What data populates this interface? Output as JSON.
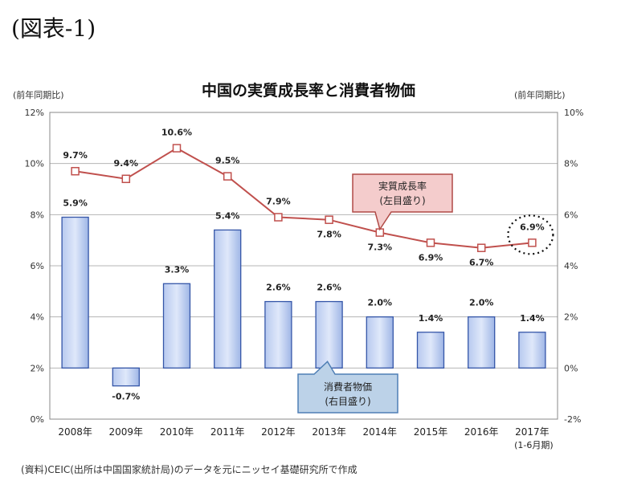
{
  "figure_label": "(図表-1)",
  "source_note": "(資料)CEIC(出所は中国国家統計局)のデータを元にニッセイ基礎研究所で作成",
  "chart_data": {
    "type": "bar+line",
    "title": "中国の実質成長率と消費者物価",
    "left_axis": {
      "unit_label": "(前年同期比)",
      "ylim": [
        0,
        12
      ],
      "ticks": [
        0,
        2,
        4,
        6,
        8,
        10,
        12
      ],
      "tick_labels": [
        "0%",
        "2%",
        "4%",
        "6%",
        "8%",
        "10%",
        "12%"
      ]
    },
    "right_axis": {
      "unit_label": "(前年同期比)",
      "ylim": [
        -2,
        10
      ],
      "ticks": [
        -2,
        0,
        2,
        4,
        6,
        8,
        10
      ],
      "tick_labels": [
        "-2%",
        "0%",
        "2%",
        "4%",
        "6%",
        "8%",
        "10%"
      ]
    },
    "categories": [
      "2008年",
      "2009年",
      "2010年",
      "2011年",
      "2012年",
      "2013年",
      "2014年",
      "2015年",
      "2016年",
      "2017年"
    ],
    "category_sublabels": [
      "",
      "",
      "",
      "",
      "",
      "",
      "",
      "",
      "",
      "(1-6月期)"
    ],
    "grid": true,
    "series": [
      {
        "name": "実質成長率",
        "axis": "left",
        "kind": "line",
        "color": "#c0504d",
        "values": [
          9.7,
          9.4,
          10.6,
          9.5,
          7.9,
          7.8,
          7.3,
          6.9,
          6.7,
          6.9
        ],
        "labels": [
          "9.7%",
          "9.4%",
          "10.6%",
          "9.5%",
          "7.9%",
          "7.8%",
          "7.3%",
          "6.9%",
          "6.7%",
          "6.9%"
        ]
      },
      {
        "name": "消費者物価",
        "axis": "right",
        "kind": "bar",
        "color": "#4a6fc0",
        "values": [
          5.9,
          -0.7,
          3.3,
          5.4,
          2.6,
          2.6,
          2.0,
          1.4,
          2.0,
          1.4
        ],
        "labels": [
          "5.9%",
          "-0.7%",
          "3.3%",
          "5.4%",
          "2.6%",
          "2.6%",
          "2.0%",
          "1.4%",
          "2.0%",
          "1.4%"
        ]
      }
    ],
    "callouts": [
      {
        "line1": "実質成長率",
        "line2": "(左目盛り)",
        "target_series": "実質成長率"
      },
      {
        "line1": "消費者物価",
        "line2": "(右目盛り)",
        "target_series": "消費者物価"
      }
    ],
    "highlight_category": "2017年"
  }
}
